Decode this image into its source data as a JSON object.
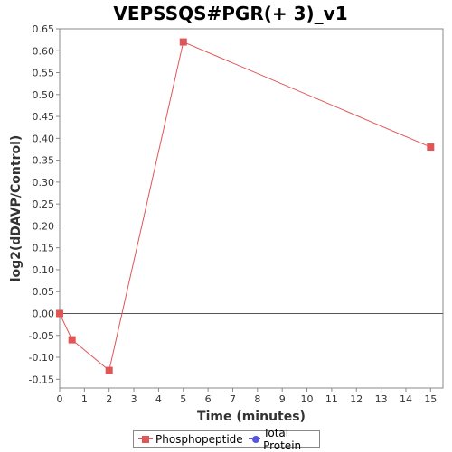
{
  "chart_data": {
    "type": "line",
    "title": "VEPSSQS#PGR(+ 3)_v1",
    "xlabel": "Time (minutes)",
    "ylabel": "log2(dDAVP/Control)",
    "xlim": [
      0,
      15.5
    ],
    "ylim": [
      -0.17,
      0.65
    ],
    "x_ticks": [
      0,
      1,
      2,
      3,
      4,
      5,
      6,
      7,
      8,
      9,
      10,
      11,
      12,
      13,
      14,
      15
    ],
    "y_ticks": [
      -0.15,
      -0.1,
      -0.05,
      0.0,
      0.05,
      0.1,
      0.15,
      0.2,
      0.25,
      0.3,
      0.35,
      0.4,
      0.45,
      0.5,
      0.55,
      0.6,
      0.65
    ],
    "y_tick_labels": [
      "-0.15",
      "-0.10",
      "-0.05",
      "0.00",
      "0.05",
      "0.10",
      "0.15",
      "0.20",
      "0.25",
      "0.30",
      "0.35",
      "0.40",
      "0.45",
      "0.50",
      "0.55",
      "0.60",
      "0.65"
    ],
    "zero_line": true,
    "grid": false,
    "legend_position": "bottom-center",
    "series": [
      {
        "name": "Phosphopeptide",
        "color": "#e05555",
        "marker": "square",
        "points": [
          {
            "x": 0,
            "y": 0.0
          },
          {
            "x": 0.5,
            "y": -0.06
          },
          {
            "x": 2,
            "y": -0.13
          },
          {
            "x": 5,
            "y": 0.62
          },
          {
            "x": 15,
            "y": 0.38
          }
        ]
      },
      {
        "name": "Total Protein",
        "color": "#5555e0",
        "marker": "circle",
        "points": []
      }
    ]
  }
}
